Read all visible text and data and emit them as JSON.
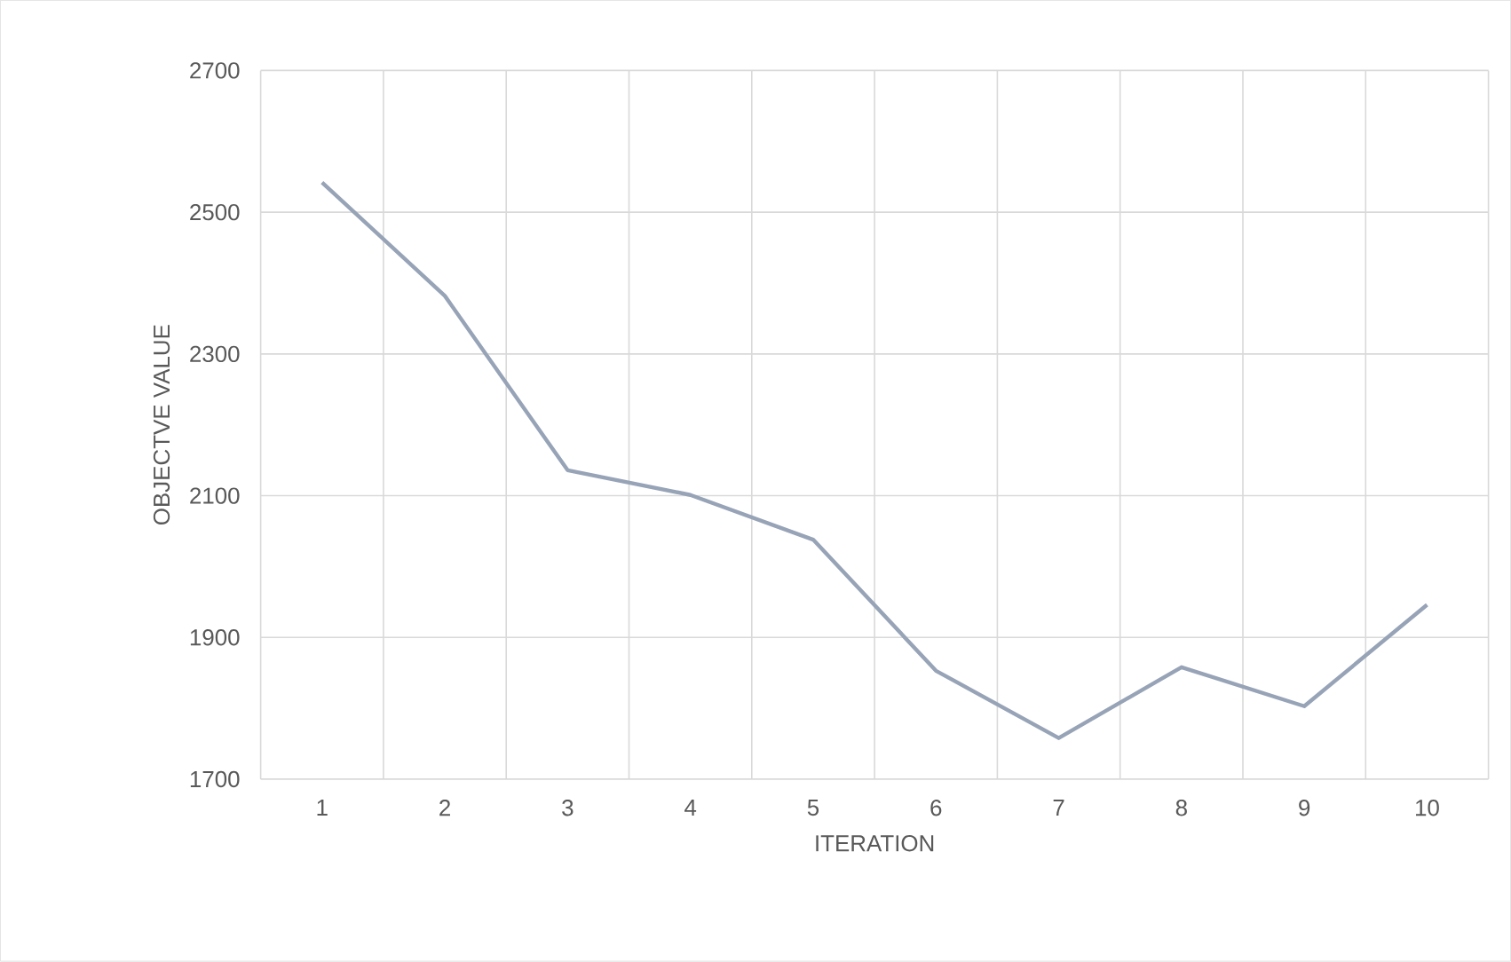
{
  "chart_data": {
    "type": "line",
    "xlabel": "ITERATION",
    "ylabel": "OBJECTVE VALUE",
    "categories": [
      "1",
      "2",
      "3",
      "4",
      "5",
      "6",
      "7",
      "8",
      "9",
      "10"
    ],
    "values": [
      2542,
      2382,
      2136,
      2101,
      2038,
      1853,
      1758,
      1858,
      1803,
      1946
    ],
    "color": "#97a3b6",
    "ylim": [
      1700,
      2700
    ],
    "yticks": [
      1700,
      1900,
      2100,
      2300,
      2500,
      2700
    ],
    "grid": true
  }
}
